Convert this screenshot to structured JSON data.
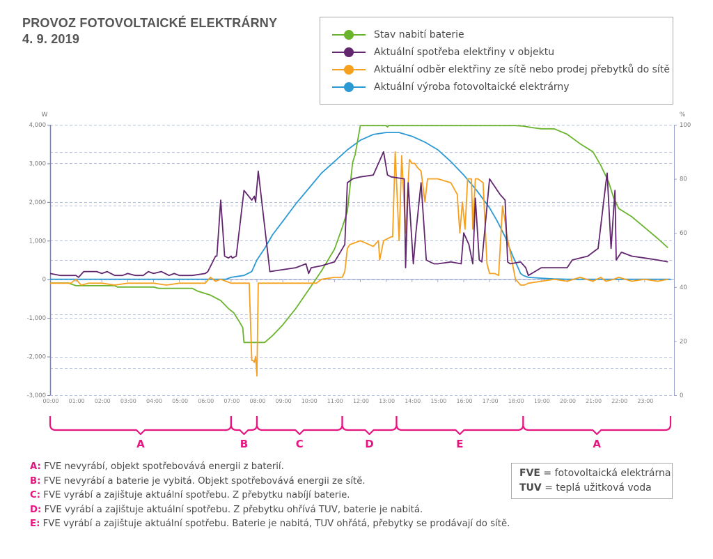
{
  "header": {
    "title": "PROVOZ FOTOVOLTAICKÉ ELEKTRÁRNY",
    "date": "4. 9. 2019"
  },
  "colors": {
    "battery": "#6ab42d",
    "consumption": "#62266f",
    "grid": "#f5a01f",
    "production": "#2b9ad4",
    "accent": "#e6157f",
    "axis": "#9aa3c9",
    "gridline": "#b8c0e0"
  },
  "legend": [
    {
      "key": "battery",
      "label": "Stav nabití baterie"
    },
    {
      "key": "consumption",
      "label": "Aktuální spotřeba elektřiny v objektu"
    },
    {
      "key": "grid",
      "label": "Aktuální odběr elektřiny ze sítě nebo prodej přebytků do sítě"
    },
    {
      "key": "production",
      "label": "Aktuální výroba fotovoltaické elektrárny"
    }
  ],
  "chart_data": {
    "type": "line",
    "title": "PROVOZ FOTOVOLTAICKÉ ELEKTRÁRNY 4. 9. 2019",
    "xlabel": "",
    "ylabel": "W",
    "y2label": "%",
    "xlim": [
      0,
      24
    ],
    "ylim": [
      -3000,
      4000
    ],
    "y2lim": [
      0,
      100
    ],
    "grid": true,
    "legend_position": "top-right",
    "x_ticks": [
      "00:00",
      "01:00",
      "02:00",
      "03:00",
      "04:00",
      "05:00",
      "06:00",
      "07:00",
      "08:00",
      "09:00",
      "10:00",
      "11:00",
      "12:00",
      "13:00",
      "14:00",
      "15:00",
      "16:00",
      "17:00",
      "18:00",
      "19:00",
      "20:00",
      "21:00",
      "22:00",
      "23:00"
    ],
    "y_ticks": [
      "4,000",
      "3,000",
      "2,000",
      "1,000",
      "0",
      "-1,000",
      "-2,000",
      "-3,000"
    ],
    "y_tick_values": [
      4000,
      3000,
      2000,
      1000,
      0,
      -1000,
      -2000,
      -3000
    ],
    "y2_ticks": [
      "100",
      "80",
      "60",
      "40",
      "20",
      "0"
    ],
    "y2_tick_values": [
      100,
      80,
      60,
      40,
      20,
      0
    ],
    "series": [
      {
        "name": "Stav nabití baterie",
        "key": "battery",
        "axis": "right",
        "unit": "%",
        "x": [
          0,
          0.7,
          1.0,
          2.5,
          2.6,
          4.0,
          4.2,
          5.5,
          5.7,
          6.2,
          6.6,
          6.9,
          7.1,
          7.3,
          7.45,
          7.5,
          8.3,
          8.6,
          9.0,
          9.5,
          10.0,
          10.5,
          11.0,
          11.3,
          11.5,
          11.7,
          11.8,
          12.0,
          13.0,
          13.05,
          13.1,
          14,
          15,
          16,
          17,
          18,
          18.3,
          18.6,
          19.0,
          19.5,
          20.0,
          20.5,
          21.0,
          21.3,
          21.6,
          21.8,
          22.0,
          22.5,
          23.0,
          23.5,
          23.9
        ],
        "values": [
          41.5,
          41.5,
          40.5,
          40.5,
          40,
          40,
          39.5,
          39.5,
          38.5,
          37,
          35,
          32,
          30.5,
          27.5,
          25,
          19.5,
          19.5,
          22,
          26,
          32,
          39,
          46,
          54,
          62,
          68,
          86,
          89,
          99.7,
          99.7,
          99.2,
          99.7,
          99.7,
          99.7,
          99.7,
          99.7,
          99.7,
          99.5,
          99,
          98.5,
          98.5,
          96.5,
          93,
          90,
          85,
          79,
          73,
          69,
          66,
          62,
          58,
          54.5
        ]
      },
      {
        "name": "Aktuální spotřeba elektřiny v objektu",
        "key": "consumption",
        "axis": "left",
        "unit": "W",
        "x": [
          0,
          0.4,
          1.0,
          1.1,
          1.3,
          1.8,
          2.0,
          2.2,
          2.5,
          2.8,
          3.0,
          3.3,
          3.6,
          3.8,
          4.0,
          4.3,
          4.6,
          4.8,
          5.0,
          5.5,
          6.0,
          6.1,
          6.4,
          6.45,
          6.6,
          6.75,
          6.9,
          7.0,
          7.05,
          7.2,
          7.5,
          7.8,
          7.9,
          7.95,
          8.05,
          8.5,
          9.0,
          9.5,
          9.9,
          10.0,
          10.1,
          10.5,
          11.0,
          11.4,
          11.5,
          11.7,
          12.0,
          12.5,
          12.9,
          13.05,
          13.2,
          13.7,
          13.75,
          13.85,
          14.05,
          14.15,
          14.35,
          14.55,
          14.7,
          14.85,
          15.0,
          15.5,
          15.9,
          16.0,
          16.2,
          16.35,
          16.45,
          16.6,
          16.7,
          17.0,
          17.1,
          17.4,
          17.6,
          17.7,
          17.8,
          18.2,
          18.4,
          18.5,
          19.0,
          20.0,
          20.2,
          20.8,
          21.0,
          21.2,
          21.5,
          21.55,
          21.7,
          21.85,
          21.9,
          22.1,
          22.5,
          23.0,
          23.5,
          23.9
        ],
        "values": [
          150,
          100,
          100,
          50,
          200,
          200,
          150,
          200,
          100,
          100,
          150,
          100,
          100,
          200,
          150,
          200,
          100,
          150,
          100,
          100,
          150,
          200,
          600,
          600,
          2050,
          600,
          550,
          600,
          550,
          600,
          2300,
          2050,
          2150,
          2000,
          2800,
          200,
          250,
          300,
          400,
          150,
          300,
          350,
          450,
          900,
          2500,
          2600,
          2650,
          2700,
          3300,
          2700,
          2650,
          2600,
          300,
          2500,
          400,
          1200,
          2500,
          500,
          450,
          400,
          400,
          450,
          400,
          1200,
          900,
          400,
          2100,
          500,
          450,
          2600,
          2500,
          2200,
          2050,
          450,
          400,
          450,
          300,
          100,
          300,
          300,
          500,
          600,
          700,
          800,
          2500,
          2750,
          800,
          2300,
          500,
          700,
          600,
          550,
          500,
          450
        ]
      },
      {
        "name": "Aktuální odběr elektřiny ze sítě nebo prodej přebytků do sítě",
        "key": "grid",
        "axis": "left",
        "unit": "W",
        "x": [
          0,
          0.8,
          1.0,
          1.2,
          1.5,
          2.0,
          2.5,
          3.0,
          3.5,
          4.0,
          4.5,
          5.0,
          5.5,
          6.0,
          6.2,
          6.4,
          6.6,
          6.8,
          7.0,
          7.1,
          7.3,
          7.5,
          7.6,
          7.7,
          7.8,
          7.85,
          7.9,
          7.95,
          8.0,
          8.05,
          8.5,
          9.0,
          9.5,
          10.0,
          10.3,
          10.5,
          11.0,
          11.3,
          11.4,
          11.5,
          11.6,
          11.8,
          12.0,
          12.5,
          12.7,
          12.75,
          12.9,
          13.2,
          13.25,
          13.35,
          13.5,
          13.6,
          13.75,
          13.9,
          14.0,
          14.1,
          14.2,
          14.35,
          14.5,
          14.6,
          15.0,
          15.5,
          15.75,
          15.85,
          15.95,
          16.05,
          16.15,
          16.3,
          16.35,
          16.45,
          16.55,
          16.75,
          16.9,
          17.0,
          17.1,
          17.2,
          17.35,
          17.5,
          17.6,
          17.65,
          17.8,
          18.0,
          18.2,
          18.35,
          18.5,
          19.0,
          19.5,
          20.0,
          20.5,
          21.0,
          21.3,
          21.5,
          21.8,
          22.0,
          22.5,
          23.0,
          23.5,
          23.9
        ],
        "values": [
          -100,
          -100,
          0,
          -150,
          -100,
          -100,
          -150,
          -100,
          -100,
          -100,
          -150,
          -100,
          -100,
          -100,
          50,
          -50,
          0,
          -50,
          -100,
          -100,
          -100,
          -100,
          -100,
          -100,
          -2100,
          -2100,
          -2150,
          -2000,
          -2500,
          -100,
          -100,
          -100,
          -100,
          -100,
          -100,
          0,
          50,
          50,
          200,
          800,
          900,
          950,
          1000,
          850,
          1000,
          500,
          1000,
          1100,
          1100,
          3300,
          1000,
          3200,
          1200,
          3100,
          3000,
          3000,
          2900,
          2800,
          2000,
          2600,
          2600,
          2500,
          2200,
          1200,
          2000,
          1300,
          2600,
          2600,
          1300,
          2600,
          2600,
          2500,
          400,
          150,
          150,
          150,
          100,
          1900,
          1500,
          1200,
          700,
          0,
          -150,
          -150,
          -100,
          -50,
          0,
          -50,
          50,
          -50,
          50,
          -50,
          0,
          50,
          -50,
          0,
          -50,
          0
        ]
      },
      {
        "name": "Aktuální výroba fotovoltaické elektrárny",
        "key": "production",
        "axis": "left",
        "unit": "W",
        "x": [
          0,
          6.8,
          7.0,
          7.5,
          7.8,
          8.0,
          8.3,
          8.6,
          9.0,
          9.5,
          10.0,
          10.5,
          11.0,
          11.5,
          12.0,
          12.5,
          13.0,
          13.5,
          14.0,
          14.5,
          15.0,
          15.5,
          16.0,
          16.5,
          17.0,
          17.3,
          17.6,
          17.9,
          18.1,
          18.2,
          18.3,
          18.5,
          19.0,
          19.5,
          20.0,
          24.0
        ],
        "values": [
          0,
          0,
          50,
          100,
          200,
          500,
          800,
          1150,
          1500,
          1950,
          2350,
          2750,
          3050,
          3350,
          3600,
          3750,
          3800,
          3800,
          3700,
          3550,
          3350,
          3050,
          2700,
          2300,
          1850,
          1500,
          1100,
          600,
          300,
          150,
          100,
          50,
          30,
          10,
          0,
          0
        ]
      }
    ]
  },
  "periods": [
    {
      "label": "A",
      "start": 0,
      "end": 7.0
    },
    {
      "label": "B",
      "start": 7.0,
      "end": 8.0
    },
    {
      "label": "C",
      "start": 8.0,
      "end": 11.3
    },
    {
      "label": "D",
      "start": 11.3,
      "end": 13.4
    },
    {
      "label": "E",
      "start": 13.4,
      "end": 18.3
    },
    {
      "label": "A",
      "start": 18.3,
      "end": 24.0
    }
  ],
  "notes": [
    {
      "key": "A:",
      "text": " FVE nevyrábí, objekt spotřebovává energii z baterií."
    },
    {
      "key": "B:",
      "text": " FVE nevyrábí a baterie je vybitá. Objekt spotřebovává energii ze sítě."
    },
    {
      "key": "C:",
      "text": " FVE vyrábí a zajištuje aktuální spotřebu. Z přebytku nabíjí baterie."
    },
    {
      "key": "D:",
      "text": " FVE vyrábí a zajištuje aktuální spotřebu. Z přebytku ohřívá TUV, baterie je nabitá."
    },
    {
      "key": "E:",
      "text": " FVE vyrábí a zajištuje aktuální spotřebu. Baterie je nabitá, TUV ohřátá, přebytky se prodávají do sítě."
    }
  ],
  "abbreviations": [
    {
      "abbr": "FVE",
      "text": " = fotovoltaická elektrárna"
    },
    {
      "abbr": "TUV",
      "text": " = teplá užitková voda"
    }
  ]
}
